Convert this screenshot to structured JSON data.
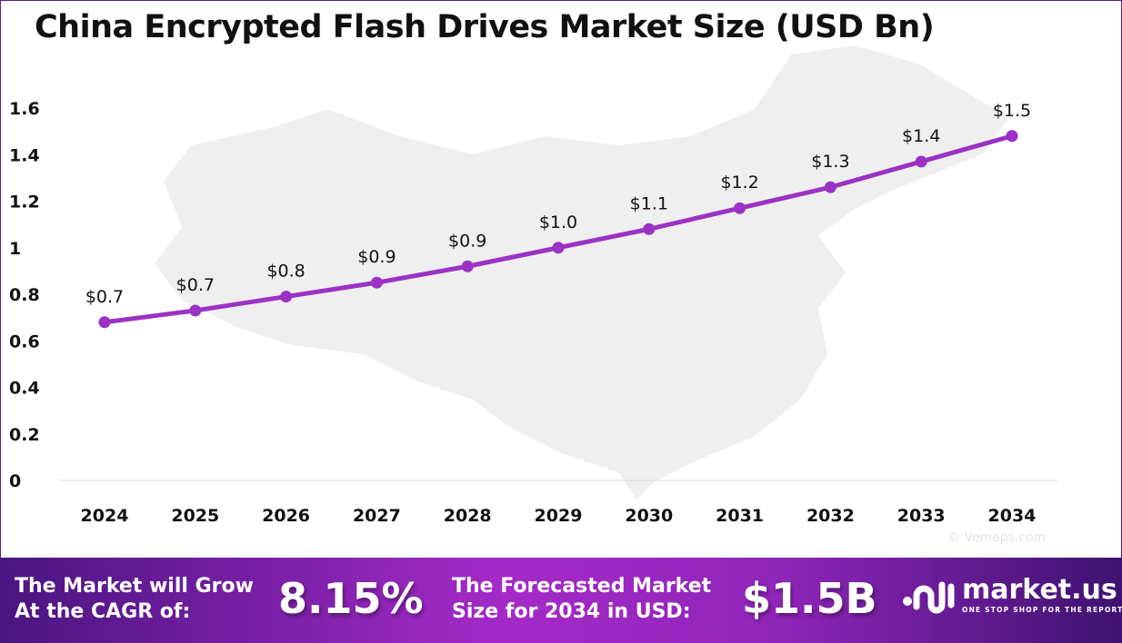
{
  "chart_data": {
    "type": "line",
    "title": "China Encrypted Flash Drives Market Size (USD Bn)",
    "xlabel": "",
    "ylabel": "",
    "categories": [
      "2024",
      "2025",
      "2026",
      "2027",
      "2028",
      "2029",
      "2030",
      "2031",
      "2032",
      "2033",
      "2034"
    ],
    "values": [
      0.68,
      0.73,
      0.79,
      0.85,
      0.92,
      1.0,
      1.08,
      1.17,
      1.26,
      1.37,
      1.48
    ],
    "data_labels": [
      "$0.7",
      "$0.7",
      "$0.8",
      "$0.9",
      "$0.9",
      "$1.0",
      "$1.1",
      "$1.2",
      "$1.3",
      "$1.4",
      "$1.5"
    ],
    "ylim": [
      0,
      1.6
    ],
    "yticks": [
      "0",
      "0.2",
      "0.4",
      "0.6",
      "0.8",
      "1",
      "1.2",
      "1.4",
      "1.6"
    ],
    "grid": false,
    "line_color": "#9b32c4",
    "background": "map of China (light gray silhouette)"
  },
  "map_credit": "© Vemaps.com",
  "banner": {
    "cagr_label": "The Market will Grow At the CAGR of:",
    "cagr_label_line1": "The Market will Grow",
    "cagr_label_line2": "At the CAGR of:",
    "cagr_value": "8.15%",
    "forecast_label_line1": "The Forecasted Market",
    "forecast_label_line2": "Size for 2034 in USD:",
    "forecast_value": "$1.5B",
    "logo_name": "market.us",
    "logo_tagline": "ONE STOP SHOP FOR THE REPORTS"
  }
}
